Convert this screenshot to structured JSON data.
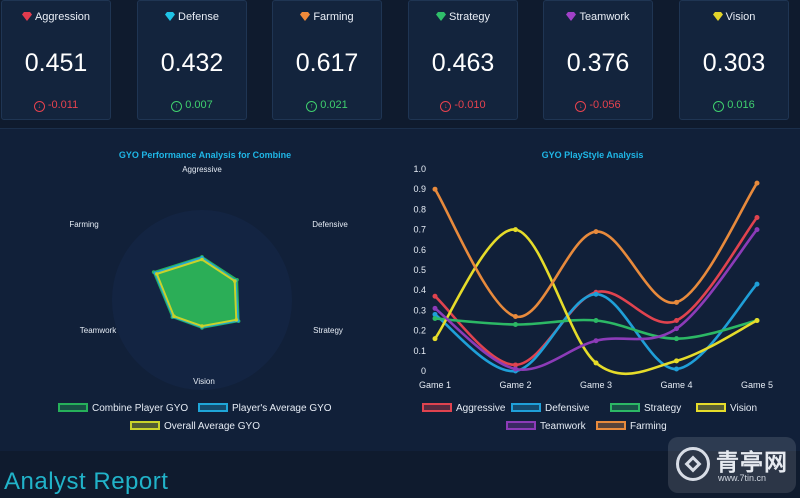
{
  "cards": [
    {
      "label": "Aggression",
      "value": "0.451",
      "delta": "-0.011",
      "direction": "down",
      "gem_color": "#e23b4e"
    },
    {
      "label": "Defense",
      "value": "0.432",
      "delta": "0.007",
      "direction": "up",
      "gem_color": "#1fc3e6"
    },
    {
      "label": "Farming",
      "value": "0.617",
      "delta": "0.021",
      "direction": "up",
      "gem_color": "#f08a3a"
    },
    {
      "label": "Strategy",
      "value": "0.463",
      "delta": "-0.010",
      "direction": "down",
      "gem_color": "#2fbe6a"
    },
    {
      "label": "Teamwork",
      "value": "0.376",
      "delta": "-0.056",
      "direction": "down",
      "gem_color": "#a040c8"
    },
    {
      "label": "Vision",
      "value": "0.303",
      "delta": "0.016",
      "direction": "up",
      "gem_color": "#e2d42a"
    }
  ],
  "colors": {
    "up": "#3fcf6e",
    "down": "#e6424e"
  },
  "report_title": "Analyst Report",
  "watermark": {
    "text": "青亭网",
    "sub": "www.7tin.cn"
  },
  "chart_data": [
    {
      "type": "radar",
      "title": "GYO Performance Analysis for Combine",
      "axes": [
        "Aggressive",
        "Defensive",
        "Strategy",
        "Vision",
        "Teamwork",
        "Farming"
      ],
      "range": [
        0,
        1
      ],
      "series": [
        {
          "name": "Combine Player GYO",
          "color": "#26b05a",
          "values": [
            0.48,
            0.45,
            0.47,
            0.31,
            0.38,
            0.62
          ]
        },
        {
          "name": "Player's Average GYO",
          "color": "#1fa6d8",
          "values": [
            0.47,
            0.43,
            0.46,
            0.3,
            0.37,
            0.6
          ]
        },
        {
          "name": "Overall Average GYO",
          "color": "#c8d22a",
          "values": [
            0.45,
            0.42,
            0.44,
            0.29,
            0.36,
            0.58
          ]
        }
      ]
    },
    {
      "type": "line",
      "title": "GYO PlayStyle Analysis",
      "categories": [
        "Game 1",
        "Game 2",
        "Game 3",
        "Game 4",
        "Game 5"
      ],
      "ylim": [
        0,
        1
      ],
      "yticks": [
        "0",
        "0.1",
        "0.2",
        "0.3",
        "0.4",
        "0.5",
        "0.6",
        "0.7",
        "0.8",
        "0.9",
        "1.0"
      ],
      "grid": false,
      "series": [
        {
          "name": "Aggressive",
          "color": "#e0434f",
          "values": [
            0.37,
            0.03,
            0.39,
            0.25,
            0.76
          ]
        },
        {
          "name": "Defensive",
          "color": "#1f9fd8",
          "values": [
            0.28,
            0.0,
            0.38,
            0.01,
            0.43
          ]
        },
        {
          "name": "Strategy",
          "color": "#2cb865",
          "values": [
            0.26,
            0.23,
            0.25,
            0.16,
            0.25
          ]
        },
        {
          "name": "Vision",
          "color": "#e6dc2a",
          "values": [
            0.16,
            0.7,
            0.04,
            0.05,
            0.25
          ]
        },
        {
          "name": "Teamwork",
          "color": "#8c3bb8",
          "values": [
            0.31,
            0.01,
            0.15,
            0.21,
            0.7
          ]
        },
        {
          "name": "Farming",
          "color": "#e88a3c",
          "values": [
            0.9,
            0.27,
            0.69,
            0.34,
            0.93
          ]
        }
      ]
    }
  ]
}
